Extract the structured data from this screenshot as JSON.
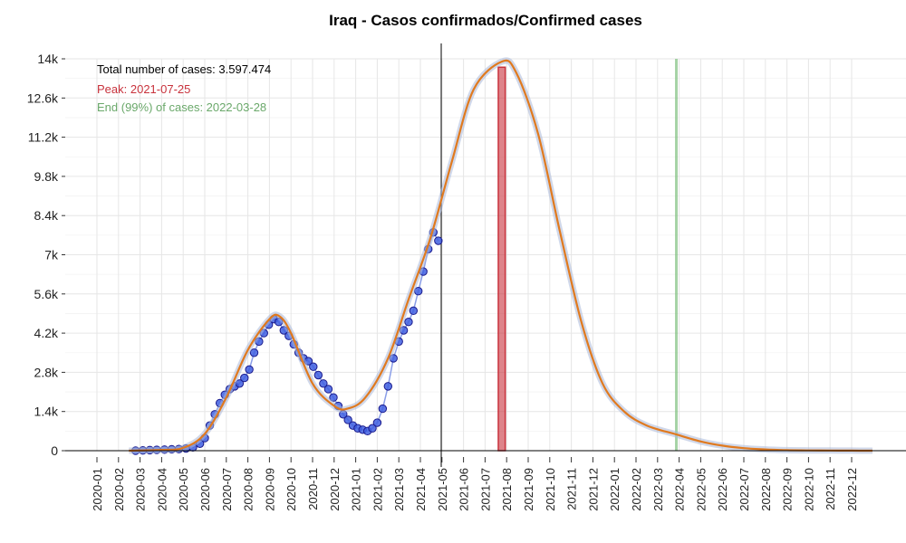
{
  "chart_data": {
    "type": "line",
    "title": "Iraq - Casos confirmados/Confirmed cases",
    "xlabel": "",
    "ylabel": "",
    "ylim": [
      0,
      14000
    ],
    "y_ticks": [
      0,
      1400,
      2800,
      4200,
      5600,
      7000,
      8400,
      9800,
      11200,
      12600,
      14000
    ],
    "y_tick_labels": [
      "0",
      "1.4k",
      "2.8k",
      "4.2k",
      "5.6k",
      "7k",
      "8.4k",
      "9.8k",
      "11.2k",
      "12.6k",
      "14k"
    ],
    "x_tick_labels": [
      "2020-01",
      "2020-02",
      "2020-03",
      "2020-04",
      "2020-05",
      "2020-06",
      "2020-07",
      "2020-08",
      "2020-09",
      "2020-10",
      "2020-11",
      "2020-12",
      "2021-01",
      "2021-02",
      "2021-03",
      "2021-04",
      "2021-05",
      "2021-06",
      "2021-07",
      "2021-08",
      "2021-09",
      "2021-10",
      "2021-11",
      "2021-12",
      "2022-01",
      "2022-02",
      "2022-03",
      "2022-04",
      "2022-05",
      "2022-06",
      "2022-07",
      "2022-08",
      "2022-09",
      "2022-10",
      "2022-11",
      "2022-12"
    ],
    "grid": true,
    "annotations": {
      "total": "Total number of cases: 3.597.474",
      "peak": "Peak: 2021-07-25",
      "end": "End (99%) of cases: 2022-03-28"
    },
    "colors": {
      "points": "#3f5fe0",
      "points_edge": "#1a1a8c",
      "fit": "#e07a1f",
      "peak": "#c8323c",
      "end": "#7fc07f",
      "today": "#000000"
    },
    "today_line": "2021-04-30",
    "peak_band": [
      "2021-07-20",
      "2021-07-30"
    ],
    "end_line": "2022-03-28",
    "observed_series": {
      "name": "",
      "points": [
        [
          "2020-02-24",
          0
        ],
        [
          "2020-03-05",
          10
        ],
        [
          "2020-03-15",
          20
        ],
        [
          "2020-03-25",
          30
        ],
        [
          "2020-04-05",
          40
        ],
        [
          "2020-04-15",
          50
        ],
        [
          "2020-04-25",
          60
        ],
        [
          "2020-05-05",
          80
        ],
        [
          "2020-05-15",
          120
        ],
        [
          "2020-05-25",
          250
        ],
        [
          "2020-06-01",
          450
        ],
        [
          "2020-06-08",
          900
        ],
        [
          "2020-06-15",
          1300
        ],
        [
          "2020-06-22",
          1700
        ],
        [
          "2020-06-29",
          2000
        ],
        [
          "2020-07-06",
          2200
        ],
        [
          "2020-07-13",
          2300
        ],
        [
          "2020-07-20",
          2400
        ],
        [
          "2020-07-27",
          2600
        ],
        [
          "2020-08-03",
          2900
        ],
        [
          "2020-08-10",
          3500
        ],
        [
          "2020-08-17",
          3900
        ],
        [
          "2020-08-24",
          4200
        ],
        [
          "2020-08-31",
          4500
        ],
        [
          "2020-09-07",
          4700
        ],
        [
          "2020-09-14",
          4600
        ],
        [
          "2020-09-21",
          4300
        ],
        [
          "2020-09-28",
          4100
        ],
        [
          "2020-10-05",
          3800
        ],
        [
          "2020-10-12",
          3500
        ],
        [
          "2020-10-19",
          3300
        ],
        [
          "2020-10-26",
          3200
        ],
        [
          "2020-11-02",
          3000
        ],
        [
          "2020-11-09",
          2700
        ],
        [
          "2020-11-16",
          2400
        ],
        [
          "2020-11-23",
          2200
        ],
        [
          "2020-11-30",
          1900
        ],
        [
          "2020-12-07",
          1600
        ],
        [
          "2020-12-14",
          1300
        ],
        [
          "2020-12-21",
          1100
        ],
        [
          "2020-12-28",
          900
        ],
        [
          "2021-01-04",
          800
        ],
        [
          "2021-01-11",
          750
        ],
        [
          "2021-01-18",
          700
        ],
        [
          "2021-01-25",
          800
        ],
        [
          "2021-02-01",
          1000
        ],
        [
          "2021-02-08",
          1500
        ],
        [
          "2021-02-15",
          2300
        ],
        [
          "2021-02-22",
          3300
        ],
        [
          "2021-03-01",
          3900
        ],
        [
          "2021-03-08",
          4300
        ],
        [
          "2021-03-15",
          4600
        ],
        [
          "2021-03-22",
          5000
        ],
        [
          "2021-03-29",
          5700
        ],
        [
          "2021-04-05",
          6400
        ],
        [
          "2021-04-12",
          7200
        ],
        [
          "2021-04-19",
          7800
        ],
        [
          "2021-04-26",
          7500
        ]
      ]
    },
    "fit_series": {
      "name": "",
      "points": [
        [
          "2020-02-15",
          0
        ],
        [
          "2020-04-01",
          30
        ],
        [
          "2020-05-01",
          100
        ],
        [
          "2020-06-01",
          600
        ],
        [
          "2020-07-01",
          1900
        ],
        [
          "2020-08-01",
          3600
        ],
        [
          "2020-09-01",
          4700
        ],
        [
          "2020-09-15",
          4800
        ],
        [
          "2020-10-01",
          4200
        ],
        [
          "2020-11-01",
          2400
        ],
        [
          "2020-12-01",
          1600
        ],
        [
          "2020-12-20",
          1500
        ],
        [
          "2021-01-15",
          1900
        ],
        [
          "2021-02-15",
          3300
        ],
        [
          "2021-03-15",
          5400
        ],
        [
          "2021-04-15",
          7600
        ],
        [
          "2021-05-15",
          10300
        ],
        [
          "2021-06-15",
          12900
        ],
        [
          "2021-07-25",
          13900
        ],
        [
          "2021-08-15",
          13500
        ],
        [
          "2021-09-15",
          11300
        ],
        [
          "2021-10-15",
          7900
        ],
        [
          "2021-11-15",
          4600
        ],
        [
          "2021-12-15",
          2400
        ],
        [
          "2022-01-15",
          1400
        ],
        [
          "2022-02-15",
          900
        ],
        [
          "2022-03-28",
          580
        ],
        [
          "2022-05-01",
          330
        ],
        [
          "2022-06-01",
          180
        ],
        [
          "2022-07-01",
          90
        ],
        [
          "2022-08-01",
          45
        ],
        [
          "2022-09-01",
          20
        ],
        [
          "2022-10-01",
          10
        ],
        [
          "2022-11-01",
          5
        ],
        [
          "2022-12-01",
          2
        ],
        [
          "2022-12-31",
          0
        ]
      ]
    }
  }
}
